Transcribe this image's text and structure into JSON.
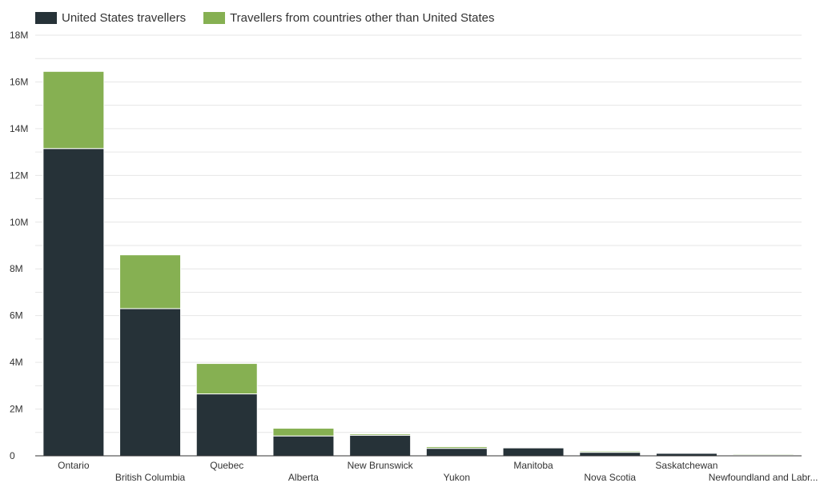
{
  "colors": {
    "us": "#263238",
    "other": "#86b052",
    "grid": "#e6e6e6",
    "axis": "#333333"
  },
  "chart_data": {
    "type": "bar",
    "stacked": true,
    "categories": [
      "Ontario",
      "British Columbia",
      "Quebec",
      "Alberta",
      "New Brunswick",
      "Yukon",
      "Manitoba",
      "Nova Scotia",
      "Saskatchewan",
      "Newfoundland and Labr..."
    ],
    "series": [
      {
        "name": "United States travellers",
        "values": [
          13150000,
          6300000,
          2650000,
          850000,
          880000,
          320000,
          340000,
          150000,
          110000,
          30000
        ]
      },
      {
        "name": "Travellers from countries other than United States",
        "values": [
          3300000,
          2300000,
          1300000,
          330000,
          60000,
          70000,
          30000,
          50000,
          10000,
          40000
        ]
      }
    ],
    "ylim": [
      0,
      18000000
    ],
    "yticks": [
      0,
      2000000,
      4000000,
      6000000,
      8000000,
      10000000,
      12000000,
      14000000,
      16000000,
      18000000
    ],
    "ytick_labels": [
      "0",
      "2M",
      "4M",
      "6M",
      "8M",
      "10M",
      "12M",
      "14M",
      "16M",
      "18M"
    ],
    "grid": true,
    "legend_position": "top-left",
    "title": "",
    "xlabel": "",
    "ylabel": ""
  }
}
